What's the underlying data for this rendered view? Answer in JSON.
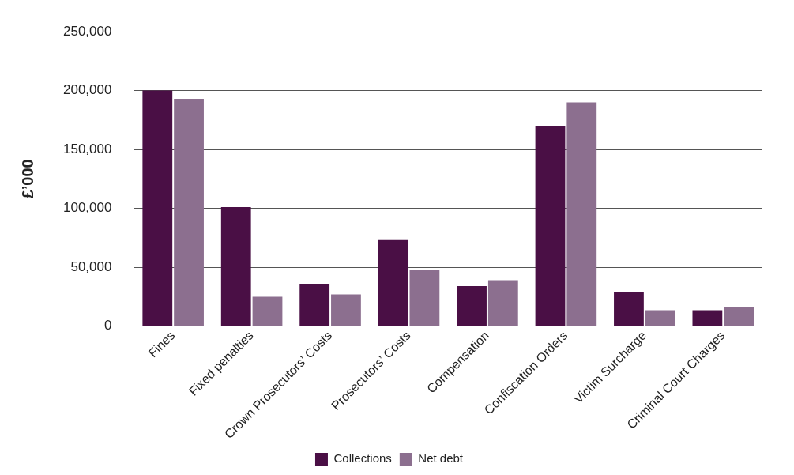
{
  "chart_data": {
    "type": "bar",
    "ylabel": "£’000",
    "categories": [
      "Fines",
      "Fixed penalties",
      "Crown Prosecutors’ Costs",
      "Prosecutors’ Costs",
      "Compensation",
      "Confiscation Orders",
      "Victim Surcharge",
      "Criminal Court Charges"
    ],
    "series": [
      {
        "name": "Collections",
        "color": "#4a0f45",
        "values": [
          200000,
          101000,
          36000,
          73000,
          34000,
          170000,
          29000,
          13500
        ]
      },
      {
        "name": "Net debt",
        "color": "#8c6f8f",
        "values": [
          193000,
          25000,
          27000,
          48000,
          39000,
          190000,
          13500,
          16500
        ]
      }
    ],
    "ylim": [
      0,
      250000
    ],
    "yticks": [
      {
        "value": 0,
        "label": "0"
      },
      {
        "value": 50000,
        "label": "50,000"
      },
      {
        "value": 100000,
        "label": "100,000"
      },
      {
        "value": 150000,
        "label": "150,000"
      },
      {
        "value": 200000,
        "label": "200,000"
      },
      {
        "value": 250000,
        "label": "250,000"
      }
    ],
    "grid": "y",
    "legend": "bottom"
  }
}
